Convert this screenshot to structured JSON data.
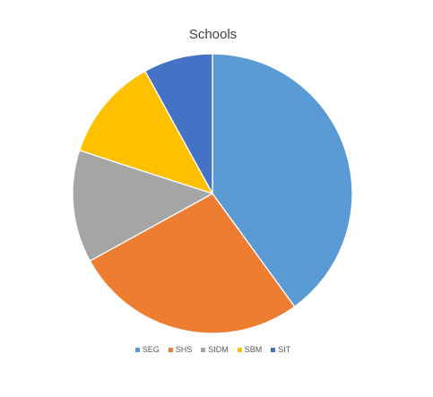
{
  "chart_data": {
    "type": "pie",
    "title": "Schools",
    "categories": [
      "SEG",
      "SHS",
      "SIDM",
      "SBM",
      "SIT"
    ],
    "values": [
      40,
      27,
      13,
      12,
      8
    ],
    "colors": [
      "#5b9bd5",
      "#ed7d31",
      "#a5a5a5",
      "#ffc000",
      "#4472c4"
    ],
    "legend_position": "bottom",
    "start_angle": "12 o'clock",
    "direction": "clockwise"
  }
}
